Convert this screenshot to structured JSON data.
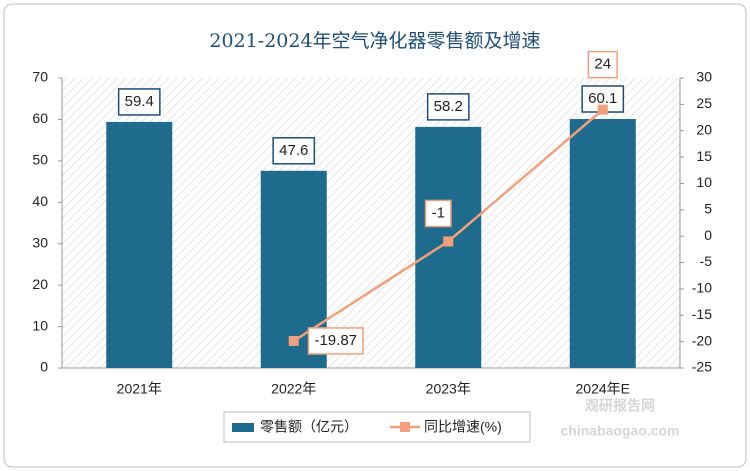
{
  "chart_data": {
    "type": "bar",
    "title": "2021-2024年空气净化器零售额及增速",
    "categories": [
      "2021年",
      "2022年",
      "2023年",
      "2024年E"
    ],
    "series": [
      {
        "name": "零售额（亿元）",
        "type": "bar",
        "color": "#1f6b8e",
        "values": [
          59.4,
          47.6,
          58.2,
          60.1
        ]
      },
      {
        "name": "同比增速(%)",
        "type": "line",
        "axis": "y2",
        "color": "#f2a07b",
        "values": [
          null,
          -19.87,
          -1,
          24
        ]
      }
    ],
    "ylim": [
      0,
      70
    ],
    "yticks": [
      0,
      10,
      20,
      30,
      40,
      50,
      60,
      70
    ],
    "y2lim": [
      -25,
      30
    ],
    "y2ticks": [
      -25,
      -20,
      -15,
      -10,
      -5,
      0,
      5,
      10,
      15,
      20,
      25,
      30
    ],
    "legend": "bottom",
    "watermark": [
      "观研报告网",
      "chinabaogao.com"
    ]
  }
}
